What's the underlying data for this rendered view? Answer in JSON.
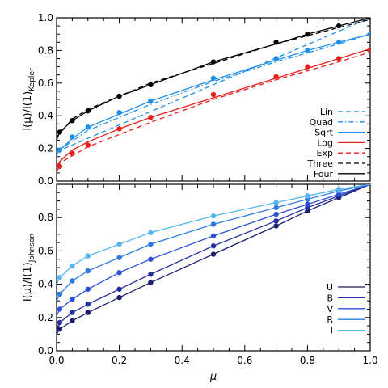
{
  "chart_data": [
    {
      "type": "line",
      "panel": "top",
      "ylabel_main": "I(μ)/I(1)",
      "ylabel_sub": "Kepler",
      "xlim": [
        0,
        1
      ],
      "ylim": [
        0,
        1
      ],
      "xticks": [
        "0.0",
        "0.2",
        "0.4",
        "0.6",
        "0.8",
        "1.0"
      ],
      "yticks": [
        "0.0",
        "0.2",
        "0.4",
        "0.6",
        "0.8",
        "1.0"
      ],
      "legend_position": "bottom-right",
      "series": [
        {
          "name": "Lin",
          "color": "#1f8fe8",
          "dash": "dashed",
          "x": [
            0,
            1
          ],
          "y": [
            0.18,
            1.0
          ]
        },
        {
          "name": "Quad",
          "color": "#1f8fe8",
          "dash": "dashdot",
          "x": [
            0,
            0.1,
            0.3,
            0.5,
            0.7,
            0.9,
            1.0
          ],
          "y": [
            0.18,
            0.31,
            0.47,
            0.61,
            0.73,
            0.84,
            0.9
          ]
        },
        {
          "name": "Sqrt",
          "color": "#1f8fe8",
          "dash": "solid",
          "x": [
            0,
            0.01,
            0.05,
            0.1,
            0.2,
            0.3,
            0.5,
            0.7,
            0.8,
            0.9,
            1.0
          ],
          "y": [
            0.16,
            0.19,
            0.26,
            0.33,
            0.41,
            0.49,
            0.62,
            0.74,
            0.8,
            0.85,
            0.9
          ]
        },
        {
          "name": "Log",
          "color": "#e8201c",
          "dash": "solid",
          "x": [
            0.003,
            0.01,
            0.05,
            0.1,
            0.2,
            0.3,
            0.5,
            0.7,
            0.8,
            0.9,
            1.0
          ],
          "y": [
            0.06,
            0.12,
            0.19,
            0.24,
            0.32,
            0.39,
            0.51,
            0.63,
            0.69,
            0.75,
            0.81
          ]
        },
        {
          "name": "Exp",
          "color": "#e8201c",
          "dash": "dashed",
          "x": [
            0,
            0.1,
            0.3,
            0.5,
            0.7,
            0.9,
            1.0
          ],
          "y": [
            0.1,
            0.21,
            0.36,
            0.5,
            0.62,
            0.73,
            0.79
          ]
        },
        {
          "name": "Three",
          "color": "#000000",
          "dash": "dashed",
          "x": [
            0,
            0.05,
            0.1,
            0.2,
            0.3,
            0.5,
            0.7,
            0.9,
            1.0
          ],
          "y": [
            0.27,
            0.38,
            0.44,
            0.52,
            0.6,
            0.72,
            0.84,
            0.94,
            0.99
          ]
        },
        {
          "name": "Four",
          "color": "#000000",
          "dash": "solid",
          "x": [
            0,
            0.01,
            0.05,
            0.1,
            0.2,
            0.3,
            0.5,
            0.7,
            0.8,
            0.9,
            1.0
          ],
          "y": [
            0.25,
            0.3,
            0.37,
            0.43,
            0.52,
            0.59,
            0.73,
            0.84,
            0.9,
            0.95,
            1.0
          ]
        }
      ],
      "markers": [
        {
          "color": "#e8201c",
          "x": [
            0.01,
            0.05,
            0.1,
            0.2,
            0.3,
            0.5,
            0.7,
            0.8,
            0.9,
            1.0
          ],
          "y": [
            0.09,
            0.17,
            0.22,
            0.32,
            0.39,
            0.53,
            0.64,
            0.7,
            0.75,
            0.8
          ]
        },
        {
          "color": "#1f8fe8",
          "x": [
            0.01,
            0.05,
            0.1,
            0.2,
            0.3,
            0.5,
            0.7,
            0.8,
            0.9,
            1.0
          ],
          "y": [
            0.19,
            0.27,
            0.33,
            0.42,
            0.49,
            0.63,
            0.75,
            0.8,
            0.85,
            0.9
          ]
        },
        {
          "color": "#000000",
          "x": [
            0.01,
            0.05,
            0.1,
            0.2,
            0.3,
            0.5,
            0.7,
            0.8,
            0.9,
            1.0
          ],
          "y": [
            0.3,
            0.37,
            0.43,
            0.52,
            0.59,
            0.73,
            0.85,
            0.9,
            0.95,
            1.0
          ]
        }
      ]
    },
    {
      "type": "line",
      "panel": "bottom",
      "ylabel_main": "I(μ)/I(1)",
      "ylabel_sub": "Johnson",
      "xlabel": "μ",
      "xlim": [
        0,
        1
      ],
      "ylim": [
        0,
        1
      ],
      "xticks": [
        "0.0",
        "0.2",
        "0.4",
        "0.6",
        "0.8",
        "1.0"
      ],
      "yticks": [
        "0.0",
        "0.2",
        "0.4",
        "0.6",
        "0.8",
        "1.0"
      ],
      "legend_position": "bottom-right",
      "series": [
        {
          "name": "U",
          "color": "#1b1f6e",
          "x": [
            0,
            0.01,
            0.05,
            0.1,
            0.2,
            0.3,
            0.5,
            0.7,
            0.8,
            0.9,
            1.0
          ],
          "y": [
            0.1,
            0.13,
            0.18,
            0.23,
            0.32,
            0.41,
            0.58,
            0.75,
            0.84,
            0.92,
            1.0
          ]
        },
        {
          "name": "B",
          "color": "#262fa0",
          "x": [
            0,
            0.01,
            0.05,
            0.1,
            0.2,
            0.3,
            0.5,
            0.7,
            0.8,
            0.9,
            1.0
          ],
          "y": [
            0.13,
            0.17,
            0.23,
            0.28,
            0.37,
            0.46,
            0.63,
            0.78,
            0.86,
            0.93,
            1.0
          ]
        },
        {
          "name": "V",
          "color": "#2d4fd6",
          "x": [
            0,
            0.01,
            0.05,
            0.1,
            0.2,
            0.3,
            0.5,
            0.7,
            0.8,
            0.9,
            1.0
          ],
          "y": [
            0.21,
            0.25,
            0.31,
            0.37,
            0.47,
            0.55,
            0.69,
            0.82,
            0.88,
            0.94,
            1.0
          ]
        },
        {
          "name": "R",
          "color": "#2e7be0",
          "x": [
            0,
            0.01,
            0.05,
            0.1,
            0.2,
            0.3,
            0.5,
            0.7,
            0.8,
            0.9,
            1.0
          ],
          "y": [
            0.3,
            0.34,
            0.42,
            0.48,
            0.56,
            0.64,
            0.76,
            0.86,
            0.91,
            0.96,
            1.0
          ]
        },
        {
          "name": "I",
          "color": "#56b6ee",
          "x": [
            0,
            0.01,
            0.05,
            0.1,
            0.2,
            0.3,
            0.5,
            0.7,
            0.8,
            0.9,
            1.0
          ],
          "y": [
            0.4,
            0.44,
            0.51,
            0.57,
            0.64,
            0.71,
            0.81,
            0.89,
            0.93,
            0.97,
            1.0
          ]
        }
      ],
      "markers_x": [
        0.01,
        0.05,
        0.1,
        0.2,
        0.3,
        0.5,
        0.7,
        0.8,
        0.9
      ]
    }
  ]
}
